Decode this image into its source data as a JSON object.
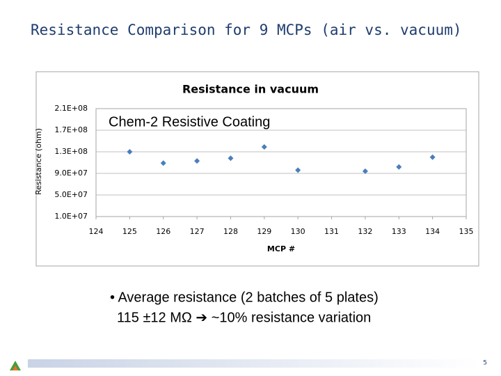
{
  "slide": {
    "title": "Resistance Comparison for 9 MCPs (air vs. vacuum)",
    "bullet_lines": [
      "• Average resistance (2 batches of 5 plates)",
      "115 ±12 MΩ ➔ ~10% resistance variation"
    ],
    "page_number": 5
  },
  "chart_data": {
    "type": "scatter",
    "title": "Resistance in vacuum",
    "annotation": "Chem-2 Resistive Coating",
    "x_label": "MCP #",
    "y_label": "Resistance (ohm)",
    "x": [
      125,
      126,
      127,
      128,
      129,
      130,
      132,
      133,
      134
    ],
    "values": [
      130000000,
      109000000,
      113000000,
      118000000,
      139000000,
      96000000,
      94000000,
      102000000,
      120000000
    ],
    "color": "#4a7ebb",
    "xlim": [
      124,
      135
    ],
    "xticks": [
      124,
      125,
      126,
      127,
      128,
      129,
      130,
      131,
      132,
      133,
      134,
      135
    ],
    "ylim": [
      10000000,
      210000000
    ],
    "yticks": [
      {
        "value": 10000000,
        "label": "1.0E+07"
      },
      {
        "value": 50000000,
        "label": "5.0E+07"
      },
      {
        "value": 90000000,
        "label": "9.0E+07"
      },
      {
        "value": 130000000,
        "label": "1.3E+08"
      },
      {
        "value": 170000000,
        "label": "1.7E+08"
      },
      {
        "value": 210000000,
        "label": "2.1E+08"
      }
    ],
    "grid": true
  }
}
